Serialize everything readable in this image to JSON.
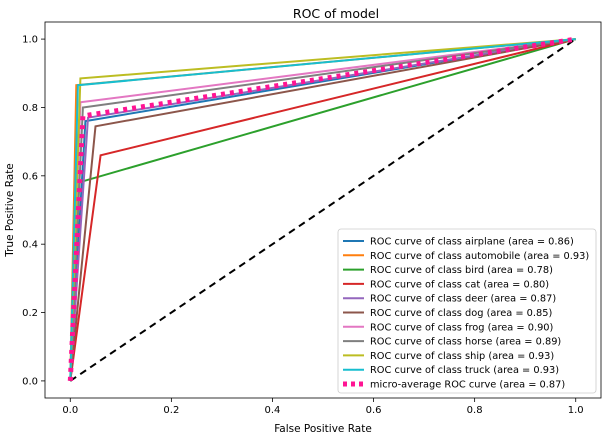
{
  "chart_data": {
    "type": "line",
    "title": "ROC of model",
    "xlabel": "False Positive Rate",
    "ylabel": "True Positive Rate",
    "xlim": [
      -0.05,
      1.05
    ],
    "ylim": [
      -0.05,
      1.05
    ],
    "xticks": [
      "0.0",
      "0.2",
      "0.4",
      "0.6",
      "0.8",
      "1.0"
    ],
    "yticks": [
      "0.0",
      "0.2",
      "0.4",
      "0.6",
      "0.8",
      "1.0"
    ],
    "grid": false,
    "legend_position": "lower-right",
    "series": [
      {
        "name": "ROC curve of class airplane (area = 0.86)",
        "color": "#1f77b4",
        "x": [
          0,
          0.03,
          1
        ],
        "y": [
          0,
          0.76,
          1
        ]
      },
      {
        "name": "ROC curve of class automobile (area = 0.93)",
        "color": "#ff7f0e",
        "x": [
          0,
          0.012,
          1
        ],
        "y": [
          0,
          0.865,
          1
        ]
      },
      {
        "name": "ROC curve of class bird (area = 0.78)",
        "color": "#2ca02c",
        "x": [
          0,
          0.015,
          1
        ],
        "y": [
          0,
          0.58,
          1
        ]
      },
      {
        "name": "ROC curve of class cat (area = 0.80)",
        "color": "#d62728",
        "x": [
          0,
          0.06,
          1
        ],
        "y": [
          0,
          0.66,
          1
        ]
      },
      {
        "name": "ROC curve of class deer (area = 0.87)",
        "color": "#9467bd",
        "x": [
          0,
          0.035,
          1
        ],
        "y": [
          0,
          0.77,
          1
        ]
      },
      {
        "name": "ROC curve of class dog (area = 0.85)",
        "color": "#8c564b",
        "x": [
          0,
          0.05,
          1
        ],
        "y": [
          0,
          0.745,
          1
        ]
      },
      {
        "name": "ROC curve of class frog (area = 0.90)",
        "color": "#e377c2",
        "x": [
          0,
          0.02,
          1
        ],
        "y": [
          0,
          0.815,
          1
        ]
      },
      {
        "name": "ROC curve of class horse (area = 0.89)",
        "color": "#7f7f7f",
        "x": [
          0,
          0.025,
          1
        ],
        "y": [
          0,
          0.8,
          1
        ]
      },
      {
        "name": "ROC curve of class ship (area = 0.93)",
        "color": "#bcbd22",
        "x": [
          0,
          0.02,
          1
        ],
        "y": [
          0,
          0.885,
          1
        ]
      },
      {
        "name": "ROC curve of class truck (area = 0.93)",
        "color": "#17becf",
        "x": [
          0,
          0.015,
          1
        ],
        "y": [
          0,
          0.865,
          1
        ]
      },
      {
        "name": "micro-average ROC curve (area = 0.87)",
        "color": "#ff1493",
        "style": "dotted",
        "x": [
          0,
          0.025,
          1
        ],
        "y": [
          0,
          0.775,
          1
        ]
      }
    ],
    "reference_line": {
      "color": "#000000",
      "style": "dashed",
      "x": [
        0,
        1
      ],
      "y": [
        0,
        1
      ]
    }
  }
}
